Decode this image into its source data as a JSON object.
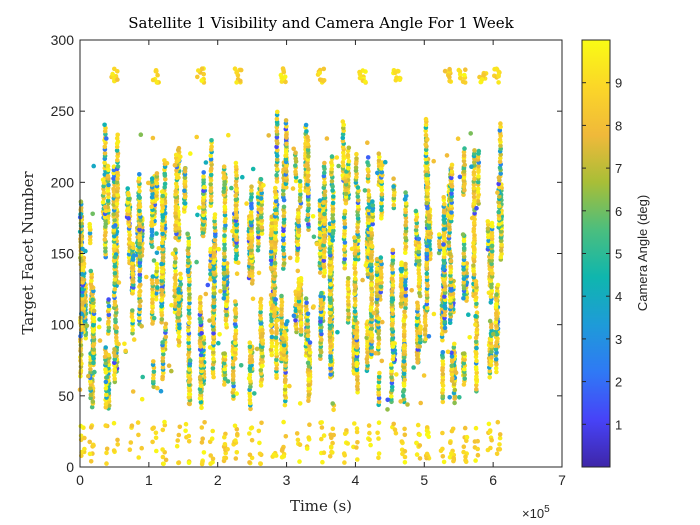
{
  "chart_data": {
    "type": "scatter",
    "title": "Satellite 1 Visibility and Camera Angle For 1 Week",
    "xlabel": "Time (s)",
    "ylabel": "Target Facet Number",
    "xlim": [
      0,
      7
    ],
    "ylim": [
      0,
      300
    ],
    "x_multiplier_label": "×10",
    "x_multiplier_exponent": "5",
    "xticks": [
      "0",
      "1",
      "2",
      "3",
      "4",
      "5",
      "6",
      "7"
    ],
    "yticks": [
      "0",
      "50",
      "100",
      "150",
      "200",
      "250",
      "300"
    ],
    "colorbar": {
      "label": "Camera Angle (deg)",
      "range": [
        0,
        10
      ],
      "ticks": [
        "1",
        "2",
        "3",
        "4",
        "5",
        "6",
        "7",
        "8",
        "9"
      ],
      "colormap": [
        "#3e26a8",
        "#4743f8",
        "#2f79f5",
        "#1e9bd8",
        "#0fb6ae",
        "#4bbe7e",
        "#a8be37",
        "#f0b93a",
        "#fbd628",
        "#f9fb14"
      ]
    },
    "grid": false,
    "description_pattern": {
      "pass_centers_x1e5": [
        0.04,
        0.17,
        0.38,
        0.52,
        0.73,
        0.87,
        1.08,
        1.22,
        1.42,
        1.56,
        1.78,
        1.92,
        2.12,
        2.26,
        2.47,
        2.61,
        2.82,
        2.96,
        3.17,
        3.31,
        3.52,
        3.66,
        3.86,
        4.0,
        4.21,
        4.35,
        4.56,
        4.7,
        4.91,
        5.05,
        5.26,
        5.4,
        5.6,
        5.75,
        5.95,
        6.08
      ],
      "top_cluster_centers_x1e5": [
        0.5,
        1.1,
        1.75,
        2.3,
        2.95,
        3.5,
        4.1,
        4.6,
        5.35,
        5.55,
        5.85,
        6.05
      ],
      "top_cluster_y": [
        270,
        280
      ],
      "main_band_y": [
        40,
        235
      ],
      "bottom_band_y": [
        0,
        30
      ]
    }
  }
}
